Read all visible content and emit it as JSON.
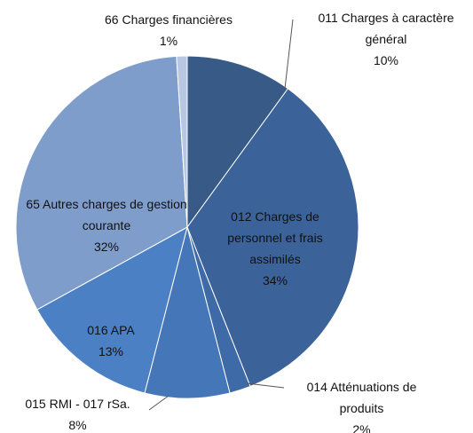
{
  "chart_data": {
    "type": "pie",
    "categories": [
      "011 Charges à caractère général",
      "012 Charges de personnel et frais assimilés",
      "014 Atténuations de produits",
      "015 RMI - 017 rSa.",
      "016 APA",
      "65 Autres charges de gestion courante",
      "66 Charges financières"
    ],
    "values": [
      10,
      34,
      2,
      8,
      13,
      32,
      1
    ],
    "value_labels": [
      "10%",
      "34%",
      "2%",
      "8%",
      "13%",
      "32%",
      "1%"
    ],
    "colors": [
      "#375a87",
      "#3b6399",
      "#3e6aa8",
      "#4576b8",
      "#4b80c4",
      "#7f9dcb",
      "#b9c8e2"
    ]
  }
}
